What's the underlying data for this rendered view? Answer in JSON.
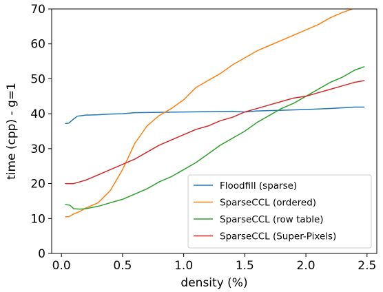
{
  "chart_data": {
    "type": "line",
    "xlabel": "density (%)",
    "ylabel": "time (cpp) - g=1",
    "xlim": [
      -0.08,
      2.58
    ],
    "ylim": [
      0,
      70
    ],
    "xticks": [
      0.0,
      0.5,
      1.0,
      1.5,
      2.0,
      2.5
    ],
    "xtick_labels": [
      "0.0",
      "0.5",
      "1.0",
      "1.5",
      "2.0",
      "2.5"
    ],
    "yticks": [
      0,
      10,
      20,
      30,
      40,
      50,
      60,
      70
    ],
    "ytick_labels": [
      "0",
      "10",
      "20",
      "30",
      "40",
      "50",
      "60",
      "70"
    ],
    "grid": false,
    "legend_position": "lower-right",
    "series": [
      {
        "name": "Floodfill (sparse)",
        "color": "#1f77b4",
        "x": [
          0.03,
          0.06,
          0.1,
          0.13,
          0.2,
          0.3,
          0.4,
          0.5,
          0.6,
          0.8,
          1.0,
          1.2,
          1.4,
          1.5,
          1.6,
          1.8,
          2.0,
          2.2,
          2.4,
          2.48
        ],
        "y": [
          37.2,
          37.3,
          38.5,
          39.3,
          39.6,
          39.7,
          39.9,
          40.0,
          40.3,
          40.4,
          40.5,
          40.6,
          40.7,
          40.5,
          40.8,
          41.0,
          41.2,
          41.5,
          41.9,
          41.9
        ]
      },
      {
        "name": "SparseCCL (ordered)",
        "color": "#ff7f0e",
        "x": [
          0.03,
          0.06,
          0.1,
          0.15,
          0.2,
          0.3,
          0.4,
          0.5,
          0.6,
          0.7,
          0.8,
          0.9,
          1.0,
          1.1,
          1.2,
          1.3,
          1.4,
          1.5,
          1.6,
          1.7,
          1.8,
          1.9,
          2.0,
          2.1,
          2.2,
          2.3,
          2.38
        ],
        "y": [
          10.5,
          10.5,
          11.3,
          12.0,
          13.0,
          14.5,
          18.0,
          24.0,
          31.5,
          36.5,
          39.5,
          41.5,
          44.0,
          47.5,
          49.5,
          51.5,
          54.0,
          56.0,
          58.0,
          59.5,
          61.0,
          62.5,
          64.0,
          65.5,
          67.5,
          69.0,
          70.0
        ]
      },
      {
        "name": "SparseCCL (row table)",
        "color": "#2ca02c",
        "x": [
          0.03,
          0.07,
          0.1,
          0.15,
          0.2,
          0.3,
          0.4,
          0.5,
          0.6,
          0.7,
          0.8,
          0.9,
          1.0,
          1.1,
          1.2,
          1.3,
          1.4,
          1.5,
          1.6,
          1.7,
          1.8,
          1.9,
          2.0,
          2.1,
          2.2,
          2.3,
          2.4,
          2.48
        ],
        "y": [
          14.0,
          13.8,
          12.8,
          12.7,
          12.8,
          13.5,
          14.5,
          15.5,
          17.0,
          18.5,
          20.5,
          22.0,
          24.0,
          26.0,
          28.5,
          31.0,
          33.0,
          35.0,
          37.5,
          39.5,
          41.5,
          43.0,
          45.0,
          47.0,
          49.0,
          50.5,
          52.5,
          53.5
        ]
      },
      {
        "name": "SparseCCL (Super-Pixels)",
        "color": "#d62728",
        "x": [
          0.03,
          0.1,
          0.15,
          0.2,
          0.3,
          0.4,
          0.5,
          0.6,
          0.7,
          0.8,
          0.9,
          1.0,
          1.1,
          1.2,
          1.3,
          1.4,
          1.5,
          1.6,
          1.7,
          1.8,
          1.9,
          2.0,
          2.1,
          2.2,
          2.3,
          2.4,
          2.48
        ],
        "y": [
          20.0,
          20.0,
          20.5,
          21.0,
          22.5,
          24.0,
          25.5,
          27.0,
          29.0,
          31.0,
          32.5,
          34.0,
          35.5,
          36.5,
          38.0,
          39.0,
          40.5,
          41.5,
          42.5,
          43.5,
          44.5,
          45.0,
          46.0,
          47.0,
          48.0,
          49.0,
          49.5
        ]
      }
    ]
  }
}
